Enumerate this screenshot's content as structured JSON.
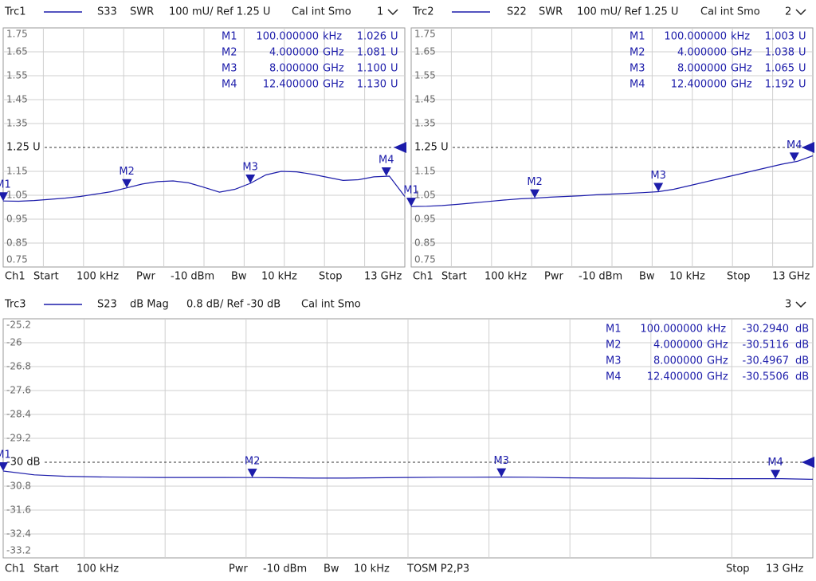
{
  "chart_data": [
    {
      "type": "line",
      "header": {
        "parameter": "S33",
        "format": "SWR",
        "scale": "100 mU/ Ref 1.25 U",
        "cal": "Cal int Smo",
        "window": "1"
      },
      "footer": [
        "Ch1",
        "Start",
        "100 kHz",
        "Pwr",
        "-10 dBm",
        "Bw",
        "10 kHz",
        "Stop",
        "13 GHz"
      ],
      "xlim": [
        0.0001,
        13
      ],
      "ylim": [
        0.75,
        1.75
      ],
      "yticks": [
        1.75,
        1.65,
        1.55,
        1.45,
        1.35,
        {
          "value": 1.25,
          "label": "1.25 U"
        },
        1.15,
        1.05,
        0.95,
        0.85,
        0.75
      ],
      "series": [
        {
          "name": "Trc1",
          "color": "#1c1caa",
          "values": [
            1.026,
            1.025,
            1.028,
            1.033,
            1.038,
            1.045,
            1.055,
            1.065,
            1.081,
            1.097,
            1.107,
            1.11,
            1.102,
            1.083,
            1.063,
            1.075,
            1.1,
            1.135,
            1.15,
            1.148,
            1.138,
            1.125,
            1.112,
            1.115,
            1.127,
            1.13,
            1.045
          ]
        }
      ],
      "markers": [
        {
          "name": "M1",
          "freq": {
            "value": 0.0001,
            "label": "100.000000"
          },
          "freq_unit": "kHz",
          "value": 1.026,
          "unit": "U"
        },
        {
          "name": "M2",
          "freq": {
            "value": 4,
            "label": "4.000000"
          },
          "freq_unit": "GHz",
          "value": 1.081,
          "unit": "U"
        },
        {
          "name": "M3",
          "freq": {
            "value": 8,
            "label": "8.000000"
          },
          "freq_unit": "GHz",
          "value": {
            "value": 1.1,
            "label": "1.100"
          },
          "unit": "U"
        },
        {
          "name": "M4",
          "freq": {
            "value": 12.4,
            "label": "12.400000"
          },
          "freq_unit": "GHz",
          "value": {
            "value": 1.13,
            "label": "1.130"
          },
          "unit": "U"
        }
      ]
    },
    {
      "type": "line",
      "header": {
        "parameter": "S22",
        "format": "SWR",
        "scale": "100 mU/ Ref 1.25 U",
        "cal": "Cal int Smo",
        "window": "2"
      },
      "footer": [
        "Ch1",
        "Start",
        "100 kHz",
        "Pwr",
        "-10 dBm",
        "Bw",
        "10 kHz",
        "Stop",
        "13 GHz"
      ],
      "xlim": [
        0.0001,
        13
      ],
      "ylim": [
        0.75,
        1.75
      ],
      "yticks": [
        1.75,
        1.65,
        1.55,
        1.45,
        1.35,
        {
          "value": 1.25,
          "label": "1.25 U"
        },
        1.15,
        1.05,
        0.95,
        0.85,
        0.75
      ],
      "series": [
        {
          "name": "Trc2",
          "color": "#1c1caa",
          "values": [
            1.003,
            1.004,
            1.007,
            1.012,
            1.018,
            1.024,
            1.03,
            1.035,
            1.038,
            1.042,
            1.045,
            1.048,
            1.052,
            1.055,
            1.058,
            1.061,
            1.065,
            1.075,
            1.09,
            1.105,
            1.12,
            1.135,
            1.15,
            1.165,
            1.18,
            1.192,
            1.215
          ]
        }
      ],
      "markers": [
        {
          "name": "M1",
          "freq": {
            "value": 0.0001,
            "label": "100.000000"
          },
          "freq_unit": "kHz",
          "value": 1.003,
          "unit": "U"
        },
        {
          "name": "M2",
          "freq": {
            "value": 4,
            "label": "4.000000"
          },
          "freq_unit": "GHz",
          "value": 1.038,
          "unit": "U"
        },
        {
          "name": "M3",
          "freq": {
            "value": 8,
            "label": "8.000000"
          },
          "freq_unit": "GHz",
          "value": 1.065,
          "unit": "U"
        },
        {
          "name": "M4",
          "freq": {
            "value": 12.4,
            "label": "12.400000"
          },
          "freq_unit": "GHz",
          "value": 1.192,
          "unit": "U"
        }
      ]
    },
    {
      "type": "line",
      "header": {
        "parameter": "S23",
        "format": "dB Mag",
        "scale": "0.8 dB/ Ref -30 dB",
        "cal": "Cal int Smo",
        "window": "3"
      },
      "footer": [
        "Ch1",
        "Start",
        "100 kHz",
        "Pwr",
        "-10 dBm",
        "Bw",
        "10 kHz",
        "TOSM P2,P3",
        "Stop",
        "13 GHz"
      ],
      "xlim": [
        0.0001,
        13
      ],
      "ylim": [
        -33.2,
        -25.2
      ],
      "yticks": [
        -25.2,
        -26,
        -26.8,
        -27.6,
        -28.4,
        -29.2,
        {
          "value": -30,
          "label": "-30 dB"
        },
        -30.8,
        -31.6,
        -32.4,
        -33.2
      ],
      "series": [
        {
          "name": "Trc3",
          "color": "#1c1caa",
          "values": [
            -30.294,
            -30.42,
            -30.47,
            -30.49,
            -30.5,
            -30.51,
            -30.51,
            -30.51,
            -30.5116,
            -30.52,
            -30.53,
            -30.53,
            -30.52,
            -30.51,
            -30.5,
            -30.5,
            -30.4967,
            -30.5,
            -30.52,
            -30.53,
            -30.53,
            -30.54,
            -30.54,
            -30.55,
            -30.55,
            -30.5506,
            -30.57
          ]
        }
      ],
      "markers": [
        {
          "name": "M1",
          "freq": {
            "value": 0.0001,
            "label": "100.000000"
          },
          "freq_unit": "kHz",
          "value": {
            "value": -30.294,
            "label": "-30.2940"
          },
          "unit": "dB"
        },
        {
          "name": "M2",
          "freq": {
            "value": 4,
            "label": "4.000000"
          },
          "freq_unit": "GHz",
          "value": -30.5116,
          "unit": "dB"
        },
        {
          "name": "M3",
          "freq": {
            "value": 8,
            "label": "8.000000"
          },
          "freq_unit": "GHz",
          "value": -30.4967,
          "unit": "dB"
        },
        {
          "name": "M4",
          "freq": {
            "value": 12.4,
            "label": "12.400000"
          },
          "freq_unit": "GHz",
          "value": -30.5506,
          "unit": "dB"
        }
      ]
    }
  ]
}
